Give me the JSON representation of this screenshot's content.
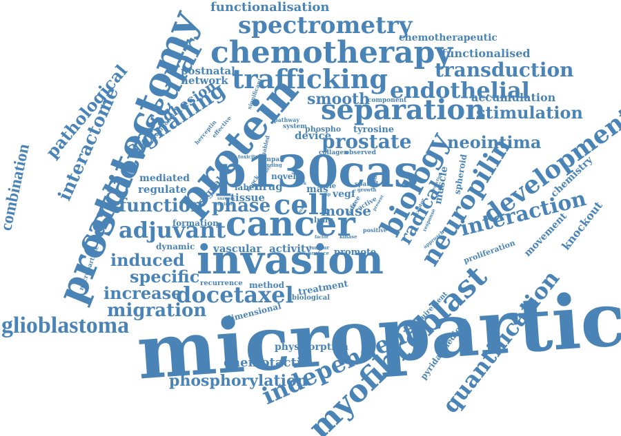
{
  "cloud": {
    "color": "#4a84b6",
    "words": [
      "microparticles",
      "invasion",
      "p130cas",
      "cancer",
      "protein",
      "prostatectomy",
      "cardiovascular",
      "chemotherapy",
      "separation",
      "trafficking",
      "spectrometry",
      "myofibroblast",
      "glioblastoma",
      "docetaxel",
      "biology",
      "neuropilin",
      "development",
      "quantification",
      "independent",
      "adjuvant",
      "function",
      "phase",
      "cell",
      "interaction",
      "radical",
      "endothelial",
      "transduction",
      "stimulation",
      "neointima",
      "prostate",
      "signalling",
      "migration",
      "increase",
      "specific",
      "induced",
      "interactome",
      "pathological",
      "combination",
      "functionalisation",
      "functionalised",
      "chemotherapeutic",
      "accumulation",
      "phosphorylation",
      "chemotactic",
      "physisorption",
      "adhesion",
      "network",
      "postnatal",
      "smooth",
      "tyrosine",
      "device",
      "regulate",
      "mediated",
      "tissue",
      "drug",
      "mouse",
      "formation",
      "vascular",
      "activity",
      "dynamic",
      "promote",
      "treatment",
      "method",
      "recurrence",
      "biological",
      "dimensional",
      "knockout",
      "movement",
      "chemistry",
      "proliferation",
      "pyridazinedione",
      "requirement",
      "muscle",
      "spheroid",
      "vegf",
      "mas",
      "label",
      "signal",
      "novel",
      "lung",
      "role",
      "collagen",
      "observed",
      "component",
      "pathway",
      "system",
      "phospho",
      "traditional",
      "effective",
      "herceptin",
      "significant",
      "control",
      "surgery",
      "microparticle",
      "kinase",
      "positive",
      "tumour",
      "surface",
      "growth",
      "enabled",
      "impair",
      "finding",
      "toxicity",
      "spatial",
      "active",
      "free",
      "present",
      "focal",
      "knock",
      "tip",
      "click",
      "receptor",
      "response",
      "approach",
      "resection",
      "remain",
      "factor",
      "study",
      "image",
      "cluster"
    ]
  }
}
